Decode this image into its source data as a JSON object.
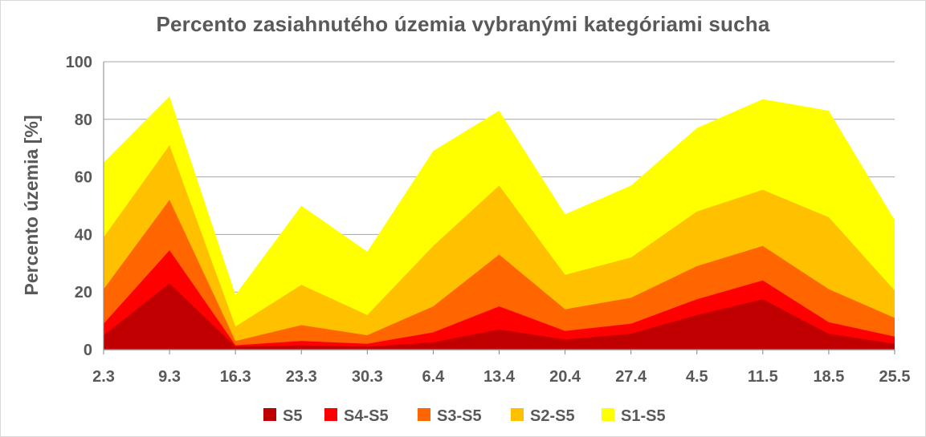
{
  "chart_data": {
    "type": "area",
    "title": "Percento zasiahnutého územia vybranými kategóriami sucha",
    "xlabel": "",
    "ylabel": "Percento územia  [%]",
    "ylim": [
      0,
      100
    ],
    "yticks": [
      "0",
      "20",
      "40",
      "60",
      "80",
      "100"
    ],
    "grid": true,
    "legend_position": "bottom",
    "categories": [
      "2.3",
      "9.3",
      "16.3",
      "23.3",
      "30.3",
      "6.4",
      "13.4",
      "20.4",
      "27.4",
      "4.5",
      "11.5",
      "18.5",
      "25.5"
    ],
    "series": [
      {
        "name": "S1-S5",
        "color": "#ffff00",
        "values": [
          65,
          88,
          19,
          50,
          34,
          69,
          83,
          47,
          57,
          77,
          87,
          83,
          45
        ]
      },
      {
        "name": "S2-S5",
        "color": "#ffc000",
        "values": [
          39,
          71,
          8,
          22.5,
          12,
          36,
          57,
          26,
          32,
          48,
          55.5,
          46,
          20.5
        ]
      },
      {
        "name": "S3-S5",
        "color": "#ff6600",
        "values": [
          21,
          52,
          3,
          8.5,
          5,
          15,
          33,
          14,
          18,
          29,
          36,
          21,
          11
        ]
      },
      {
        "name": "S4-S5",
        "color": "#ff0000",
        "values": [
          9,
          34.5,
          1.5,
          3,
          2,
          6,
          15,
          6.5,
          9,
          17.5,
          24,
          9.5,
          4.5
        ]
      },
      {
        "name": "S5",
        "color": "#c00000",
        "values": [
          5,
          23,
          1,
          1.5,
          1,
          2.5,
          7,
          3.5,
          5.5,
          12,
          17.5,
          5.5,
          2
        ]
      }
    ],
    "legend": [
      "S5",
      "S4-S5",
      "S3-S5",
      "S2-S5",
      "S1-S5"
    ]
  }
}
